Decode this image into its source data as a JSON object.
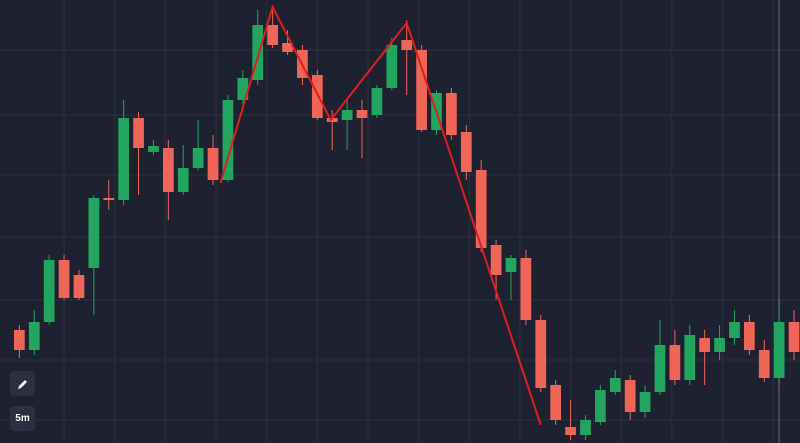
{
  "chart_data": {
    "type": "candlestick",
    "up_color": "#22a55f",
    "down_color": "#ef6658",
    "grid": true,
    "xlim": [
      -1.3,
      52.4
    ],
    "ylim": [
      0,
      443
    ],
    "xticks": [
      3,
      6.4,
      9.8,
      13.2,
      16.6,
      20,
      23.4,
      26.8,
      30.2,
      33.6,
      37,
      40.4,
      43.8,
      47.2,
      50.6
    ],
    "yticks": [
      23,
      83,
      143,
      206,
      268,
      328,
      393
    ],
    "ohlc": [
      [
        113,
        118,
        85,
        93
      ],
      [
        93,
        133,
        88,
        121
      ],
      [
        121,
        188,
        118,
        183
      ],
      [
        183,
        188,
        143,
        145
      ],
      [
        168,
        173,
        143,
        145
      ],
      [
        175,
        248,
        128,
        245
      ],
      [
        245,
        263,
        233,
        243
      ],
      [
        243,
        343,
        238,
        325
      ],
      [
        325,
        331,
        248,
        295
      ],
      [
        291,
        303,
        288,
        297
      ],
      [
        295,
        303,
        223,
        251
      ],
      [
        251,
        298,
        248,
        275
      ],
      [
        275,
        323,
        273,
        295
      ],
      [
        295,
        308,
        258,
        263
      ],
      [
        263,
        348,
        261,
        343
      ],
      [
        343,
        373,
        338,
        365
      ],
      [
        363,
        433,
        358,
        418
      ],
      [
        418,
        435,
        395,
        398
      ],
      [
        400,
        413,
        388,
        391
      ],
      [
        393,
        398,
        358,
        365
      ],
      [
        368,
        373,
        323,
        325
      ],
      [
        325,
        333,
        293,
        321
      ],
      [
        323,
        343,
        293,
        333
      ],
      [
        333,
        343,
        285,
        325
      ],
      [
        328,
        358,
        325,
        355
      ],
      [
        355,
        405,
        353,
        398
      ],
      [
        403,
        423,
        348,
        393
      ],
      [
        393,
        398,
        311,
        313
      ],
      [
        313,
        353,
        308,
        350
      ],
      [
        350,
        355,
        303,
        308
      ],
      [
        311,
        318,
        263,
        271
      ],
      [
        273,
        283,
        191,
        195
      ],
      [
        198,
        203,
        143,
        168
      ],
      [
        171,
        188,
        143,
        185
      ],
      [
        185,
        193,
        118,
        123
      ],
      [
        123,
        128,
        51,
        55
      ],
      [
        58,
        63,
        18,
        23
      ],
      [
        16,
        43,
        3,
        8
      ],
      [
        8,
        28,
        3,
        23
      ],
      [
        21,
        58,
        18,
        53
      ],
      [
        51,
        73,
        48,
        65
      ],
      [
        63,
        68,
        23,
        31
      ],
      [
        31,
        58,
        25,
        51
      ],
      [
        51,
        123,
        48,
        98
      ],
      [
        98,
        113,
        58,
        63
      ],
      [
        63,
        118,
        58,
        108
      ],
      [
        105,
        113,
        58,
        91
      ],
      [
        91,
        118,
        83,
        105
      ],
      [
        105,
        133,
        98,
        121
      ],
      [
        121,
        128,
        88,
        93
      ],
      [
        93,
        103,
        61,
        65
      ],
      [
        65,
        143,
        58,
        121
      ],
      [
        121,
        133,
        83,
        91
      ]
    ],
    "pattern": {
      "color": "#e01e1e",
      "x": [
        13.5,
        17.0,
        20.9,
        26.0,
        35.0
      ],
      "y": [
        260,
        436,
        323,
        420,
        18
      ]
    },
    "interval": "5m"
  }
}
